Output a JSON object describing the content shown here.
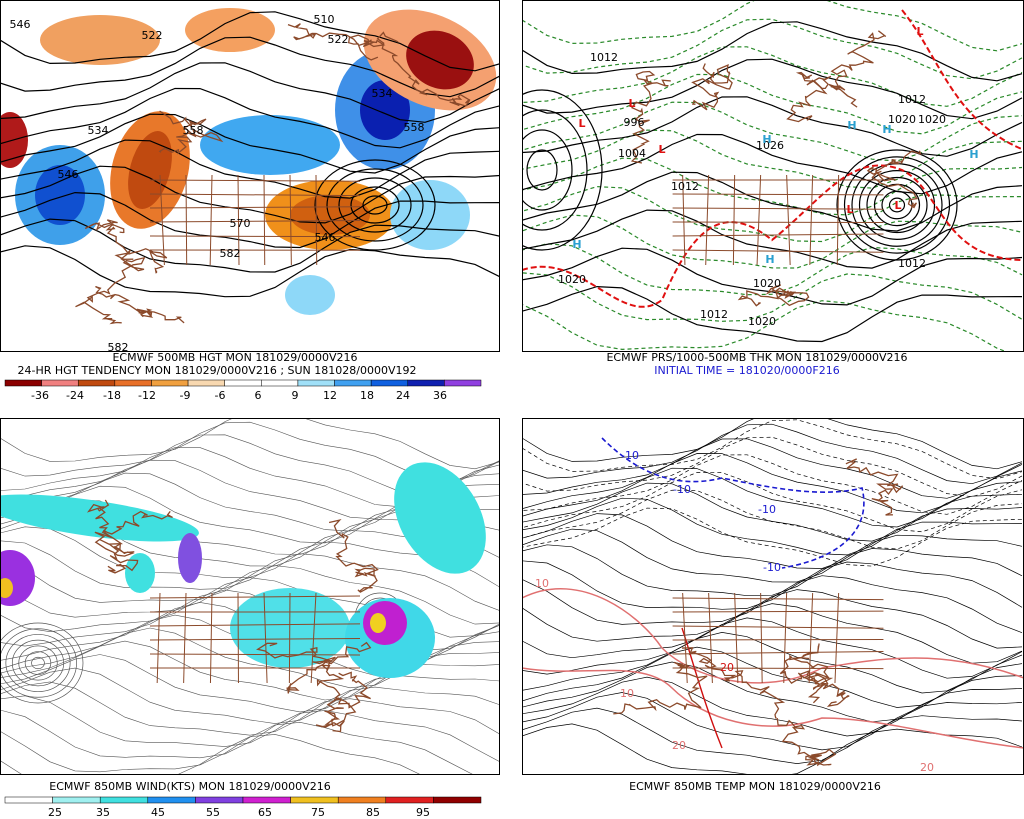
{
  "panels": [
    {
      "captions": [
        "ECMWF 500MB HGT MON 181029/0000V216",
        "24-HR HGT TENDENCY MON 181029/0000V216 ; SUN 181028/0000V192"
      ],
      "colorbar": [
        "-36",
        "-24",
        "-18",
        "-12",
        "-9",
        "-6",
        "6",
        "9",
        "12",
        "18",
        "24",
        "36"
      ],
      "labels": [
        "546",
        "522",
        "510",
        "522",
        "534",
        "534",
        "558",
        "558",
        "546",
        "570",
        "582",
        "546",
        "582"
      ]
    },
    {
      "captions": [
        "ECMWF PRS/1000-500MB THK MON 181029/0000V216",
        "INITIAL TIME = 181020/0000F216"
      ],
      "labels": [
        "1012",
        "1004",
        "996",
        "1026",
        "1012",
        "1020",
        "1012",
        "1020",
        "1020",
        "1020",
        "1012",
        "1020",
        "1012"
      ],
      "centers": [
        "L",
        "L",
        "L",
        "L",
        "L",
        "H",
        "H",
        "H",
        "H",
        "H",
        "H",
        "L"
      ]
    },
    {
      "captions": [
        "ECMWF 850MB WIND(KTS) MON 181029/0000V216"
      ],
      "colorbar": [
        "25",
        "35",
        "45",
        "55",
        "65",
        "75",
        "85",
        "95"
      ]
    },
    {
      "captions": [
        "ECMWF 850MB TEMP MON 181029/0000V216"
      ],
      "labels": [
        "-10",
        "-10",
        "-10",
        "-10",
        "10",
        "10",
        "20",
        "20",
        "20"
      ]
    }
  ]
}
